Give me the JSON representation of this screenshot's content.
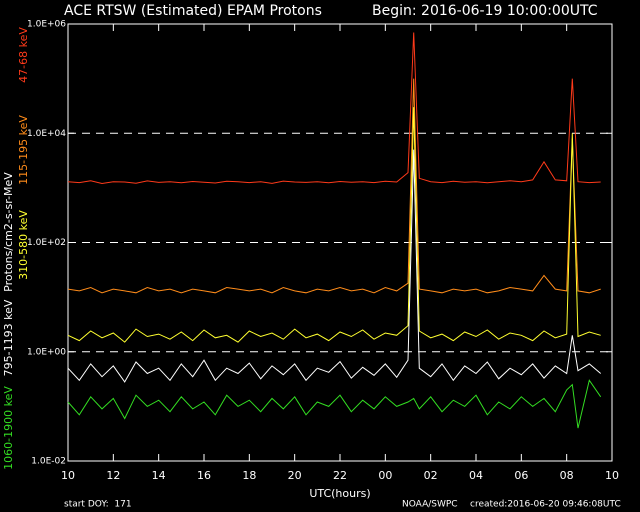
{
  "chart_data": {
    "type": "line",
    "title": "ACE RTSW (Estimated) EPAM Protons",
    "subtitle": "Begin: 2016-06-19 10:00:00UTC",
    "xlabel": "UTC(hours)",
    "ylabel": "Protons/cm2-s-sr-MeV",
    "annotations": [
      "start DOY:  171",
      "NOAA/SWPC",
      "created:2016-06-20 09:46:08UTC"
    ],
    "ylog": true,
    "grid": true,
    "xlim": [
      10,
      34
    ],
    "xticks": [
      10,
      12,
      14,
      16,
      18,
      20,
      22,
      {
        "value": 24,
        "label": "00"
      },
      {
        "value": 26,
        "label": "02"
      },
      {
        "value": 28,
        "label": "04"
      },
      {
        "value": 30,
        "label": "06"
      },
      {
        "value": 32,
        "label": "08"
      },
      {
        "value": 34,
        "label": "10"
      }
    ],
    "ylim": [
      0.01,
      1000000
    ],
    "yticks": [
      {
        "value": 0.01,
        "label": "1.0E-02"
      },
      {
        "value": 1,
        "label": "1.0E+00"
      },
      {
        "value": 100,
        "label": "1.0E+02"
      },
      {
        "value": 10000,
        "label": "1.0E+04"
      },
      {
        "value": 1000000,
        "label": "1.0E+06"
      }
    ],
    "x": [
      10,
      10.5,
      11,
      11.5,
      12,
      12.5,
      13,
      13.5,
      14,
      14.5,
      15,
      15.5,
      16,
      16.5,
      17,
      17.5,
      18,
      18.5,
      19,
      19.5,
      20,
      20.5,
      21,
      21.5,
      22,
      22.5,
      23,
      23.5,
      24,
      24.5,
      25,
      25.25,
      25.5,
      26,
      26.5,
      27,
      27.5,
      28,
      28.5,
      29,
      29.5,
      30,
      30.5,
      31,
      31.5,
      32,
      32.25,
      32.5,
      33,
      33.5
    ],
    "series": [
      {
        "name": "47-68 keV",
        "color": "#ff3a1a",
        "values": [
          1300,
          1250,
          1350,
          1200,
          1300,
          1280,
          1220,
          1340,
          1260,
          1300,
          1240,
          1310,
          1270,
          1230,
          1320,
          1290,
          1250,
          1300,
          1210,
          1330,
          1280,
          1260,
          1300,
          1240,
          1310,
          1270,
          1290,
          1250,
          1320,
          1280,
          1900,
          700000,
          1500,
          1300,
          1250,
          1320,
          1270,
          1300,
          1240,
          1290,
          1350,
          1300,
          1400,
          3000,
          1400,
          1350,
          100000,
          1300,
          1250,
          1280
        ]
      },
      {
        "name": "115-195 keV",
        "color": "#ff8c1a",
        "values": [
          14,
          13,
          15,
          12,
          14,
          13,
          12,
          15,
          13,
          14,
          12,
          14,
          13,
          12,
          15,
          14,
          13,
          14,
          12,
          15,
          13,
          12,
          14,
          13,
          15,
          13,
          14,
          12,
          15,
          13,
          18,
          100000,
          14,
          13,
          12,
          14,
          13,
          14,
          12,
          13,
          15,
          14,
          13,
          25,
          14,
          13,
          8000,
          13,
          12,
          14
        ]
      },
      {
        "name": "310-580 keV",
        "color": "#ffff30",
        "values": [
          2,
          1.6,
          2.4,
          1.8,
          2.2,
          1.5,
          2.6,
          1.9,
          2.1,
          1.7,
          2.3,
          1.6,
          2.5,
          1.8,
          2,
          1.5,
          2.4,
          1.9,
          2.2,
          1.7,
          2.6,
          1.8,
          2.1,
          1.6,
          2.3,
          1.9,
          2.5,
          1.7,
          2.2,
          2,
          3,
          30000,
          2.4,
          1.8,
          2.1,
          1.6,
          2.3,
          1.9,
          2.5,
          1.7,
          2.2,
          2,
          1.6,
          2.4,
          1.8,
          2.1,
          10000,
          1.9,
          2.3,
          2
        ]
      },
      {
        "name": "795-1193 keV",
        "color": "#ffffff",
        "values": [
          0.5,
          0.3,
          0.6,
          0.35,
          0.55,
          0.28,
          0.65,
          0.4,
          0.5,
          0.3,
          0.6,
          0.35,
          0.7,
          0.3,
          0.5,
          0.4,
          0.62,
          0.32,
          0.55,
          0.38,
          0.6,
          0.3,
          0.5,
          0.42,
          0.66,
          0.33,
          0.52,
          0.37,
          0.6,
          0.34,
          0.7,
          5000,
          0.5,
          0.35,
          0.6,
          0.3,
          0.55,
          0.4,
          0.65,
          0.32,
          0.5,
          0.38,
          0.6,
          0.33,
          0.55,
          0.4,
          2,
          0.45,
          0.6,
          0.4
        ]
      },
      {
        "name": "1060-1900 keV",
        "color": "#33dd22",
        "values": [
          0.12,
          0.07,
          0.15,
          0.09,
          0.14,
          0.06,
          0.16,
          0.1,
          0.13,
          0.08,
          0.15,
          0.09,
          0.12,
          0.07,
          0.16,
          0.1,
          0.13,
          0.08,
          0.14,
          0.09,
          0.15,
          0.07,
          0.12,
          0.1,
          0.16,
          0.08,
          0.13,
          0.09,
          0.15,
          0.1,
          0.12,
          0.14,
          0.09,
          0.15,
          0.08,
          0.13,
          0.1,
          0.16,
          0.07,
          0.12,
          0.09,
          0.15,
          0.1,
          0.14,
          0.08,
          0.2,
          0.25,
          0.04,
          0.3,
          0.15
        ]
      }
    ]
  }
}
